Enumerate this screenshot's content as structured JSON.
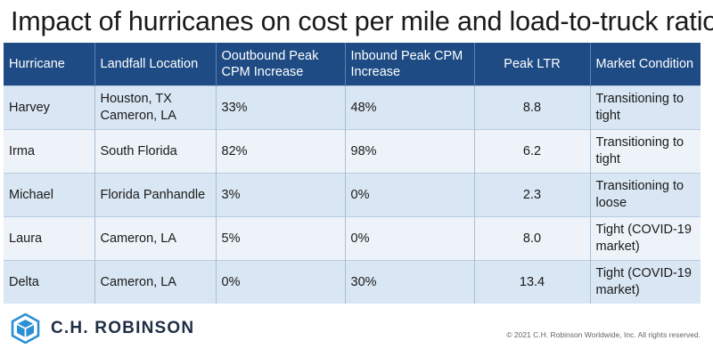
{
  "title": "Impact of hurricanes on cost per mile and load-to-truck ratio",
  "table": {
    "headers": [
      "Hurricane",
      "Landfall Location",
      "Ooutbound Peak CPM Increase",
      "Inbound Peak CPM Increase",
      "Peak LTR",
      "Market Condition"
    ],
    "rows": [
      [
        "Harvey",
        "Houston, TX Cameron, LA",
        "33%",
        "48%",
        "8.8",
        "Transitioning to tight"
      ],
      [
        "Irma",
        "South Florida",
        "82%",
        "98%",
        "6.2",
        "Transitioning to tight"
      ],
      [
        "Michael",
        "Florida Panhandle",
        "3%",
        "0%",
        "2.3",
        "Transitioning to loose"
      ],
      [
        "Laura",
        "Cameron, LA",
        "5%",
        "0%",
        "8.0",
        "Tight (COVID-19 market)"
      ],
      [
        "Delta",
        "Cameron, LA",
        "0%",
        "30%",
        "13.4",
        "Tight (COVID-19 market)"
      ]
    ]
  },
  "footer": {
    "logo_text": "C.H. ROBINSON",
    "logo_icon": "chr-logo-icon",
    "copyright": "© 2021 C.H. Robinson Worldwide, Inc. All rights reserved."
  },
  "colors": {
    "header_bg": "#1e4b84",
    "row_odd": "#d9e6f3",
    "row_even": "#edf3f9",
    "logo_blue": "#2b8fd6"
  }
}
